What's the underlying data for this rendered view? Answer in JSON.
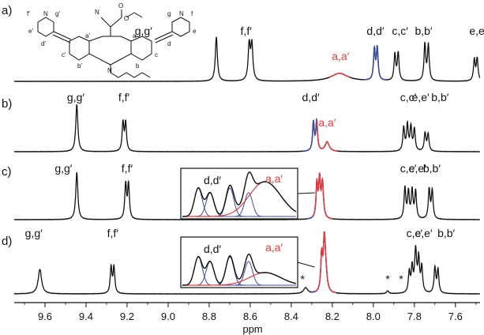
{
  "chart_data": {
    "type": "line",
    "xlabel": "ppm",
    "xlim": [
      9.75,
      7.48
    ],
    "ticks": [
      "9.6",
      "9.4",
      "9.2",
      "9.0",
      "8.8",
      "8.6",
      "8.4",
      "8.2",
      "8.0",
      "7.8",
      "7.6"
    ],
    "tick_values": [
      9.6,
      9.4,
      9.2,
      9.0,
      8.8,
      8.6,
      8.4,
      8.2,
      8.0,
      7.8,
      7.6
    ],
    "colors": {
      "trace": "#111111",
      "aa": "#e53b3b",
      "dd": "#3a4ca0"
    },
    "structure_labels": {
      "f_prime": "f′",
      "g_prime": "g′",
      "e_prime": "e′",
      "d_prime": "d′",
      "a_prime": "a′",
      "c_prime": "c′",
      "b_prime": "b′",
      "a": "a",
      "b": "b",
      "c": "c",
      "d": "d",
      "e": "e",
      "f": "f",
      "g": "g",
      "n_left": "N",
      "n_right": "N",
      "n_center": "N",
      "cn_n": "N",
      "o_top": "O",
      "o_mid": "O"
    },
    "panels": [
      {
        "tag": "a)",
        "labels": [
          {
            "text": "g,g′",
            "x": 9.12
          },
          {
            "text": "f,f′",
            "x": 8.62
          },
          {
            "text": "a,a′",
            "x": 8.16,
            "color": "aa"
          },
          {
            "text": "d,d′",
            "x": 7.99
          },
          {
            "text": "c,c′",
            "x": 7.87
          },
          {
            "text": "b,b′",
            "x": 7.755
          },
          {
            "text": "e,e′",
            "x": 7.49
          }
        ],
        "peaks": [
          {
            "x": 8.765,
            "h": 1.0,
            "w": 0.006,
            "c": "trace"
          },
          {
            "x": 8.605,
            "h": 0.8,
            "w": 0.006,
            "c": "trace"
          },
          {
            "x": 8.592,
            "h": 0.8,
            "w": 0.006,
            "c": "trace"
          },
          {
            "x": 8.165,
            "h": 0.18,
            "w": 0.05,
            "c": "aa"
          },
          {
            "x": 7.995,
            "h": 0.68,
            "w": 0.005,
            "c": "dd"
          },
          {
            "x": 7.981,
            "h": 0.72,
            "w": 0.005,
            "c": "dd"
          },
          {
            "x": 7.895,
            "h": 0.6,
            "w": 0.005,
            "c": "trace"
          },
          {
            "x": 7.879,
            "h": 0.62,
            "w": 0.005,
            "c": "trace"
          },
          {
            "x": 7.749,
            "h": 0.82,
            "w": 0.005,
            "c": "trace"
          },
          {
            "x": 7.732,
            "h": 0.8,
            "w": 0.005,
            "c": "trace"
          },
          {
            "x": 7.508,
            "h": 0.48,
            "w": 0.005,
            "c": "trace"
          },
          {
            "x": 7.494,
            "h": 0.5,
            "w": 0.005,
            "c": "trace"
          }
        ]
      },
      {
        "tag": "b)",
        "labels": [
          {
            "text": "g,g′",
            "x": 9.45
          },
          {
            "text": "f,f′",
            "x": 9.215
          },
          {
            "text": "d,d′",
            "x": 8.305
          },
          {
            "text": "a,a′",
            "x": 8.225,
            "color": "aa"
          },
          {
            "text": "c,c′",
            "x": 7.83
          },
          {
            "text": "e,e′",
            "x": 7.77
          },
          {
            "text": "b,b′",
            "x": 7.675
          }
        ],
        "peaks": [
          {
            "x": 9.445,
            "h": 1.0,
            "w": 0.006,
            "c": "trace"
          },
          {
            "x": 9.22,
            "h": 0.6,
            "w": 0.005,
            "c": "trace"
          },
          {
            "x": 9.207,
            "h": 0.6,
            "w": 0.005,
            "c": "trace"
          },
          {
            "x": 8.292,
            "h": 0.6,
            "w": 0.005,
            "c": "dd"
          },
          {
            "x": 8.276,
            "h": 0.62,
            "w": 0.005,
            "c": "dd"
          },
          {
            "x": 8.225,
            "h": 0.2,
            "w": 0.012,
            "c": "aa"
          },
          {
            "x": 7.852,
            "h": 0.5,
            "w": 0.005,
            "c": "trace"
          },
          {
            "x": 7.834,
            "h": 0.55,
            "w": 0.005,
            "c": "trace"
          },
          {
            "x": 7.817,
            "h": 0.5,
            "w": 0.005,
            "c": "trace"
          },
          {
            "x": 7.8,
            "h": 0.46,
            "w": 0.005,
            "c": "trace"
          },
          {
            "x": 7.748,
            "h": 0.38,
            "w": 0.005,
            "c": "trace"
          },
          {
            "x": 7.733,
            "h": 0.36,
            "w": 0.005,
            "c": "trace"
          }
        ]
      },
      {
        "tag": "c)",
        "labels": [
          {
            "text": "g,g′",
            "x": 9.51
          },
          {
            "text": "f,f′",
            "x": 9.2
          },
          {
            "text": "c,c′",
            "x": 7.83
          },
          {
            "text": "e,e′",
            "x": 7.785
          },
          {
            "text": "b,b′",
            "x": 7.715
          }
        ],
        "inset": {
          "labels": [
            {
              "text": "d,d′",
              "x": 8.78
            },
            {
              "text": "a,a′",
              "x": 8.58,
              "color": "aa"
            }
          ]
        },
        "peaks": [
          {
            "x": 9.445,
            "h": 1.0,
            "w": 0.006,
            "c": "trace"
          },
          {
            "x": 9.207,
            "h": 0.74,
            "w": 0.005,
            "c": "trace"
          },
          {
            "x": 9.193,
            "h": 0.74,
            "w": 0.005,
            "c": "trace"
          },
          {
            "x": 8.275,
            "h": 0.72,
            "w": 0.005,
            "c": "dd"
          },
          {
            "x": 8.262,
            "h": 0.78,
            "w": 0.005,
            "c": "dd"
          },
          {
            "x": 8.248,
            "h": 0.74,
            "w": 0.006,
            "c": "aa"
          },
          {
            "x": 7.846,
            "h": 0.66,
            "w": 0.005,
            "c": "trace"
          },
          {
            "x": 7.829,
            "h": 0.56,
            "w": 0.005,
            "c": "trace"
          },
          {
            "x": 7.811,
            "h": 0.6,
            "w": 0.005,
            "c": "trace"
          },
          {
            "x": 7.794,
            "h": 0.58,
            "w": 0.005,
            "c": "trace"
          },
          {
            "x": 7.728,
            "h": 0.62,
            "w": 0.005,
            "c": "trace"
          },
          {
            "x": 7.713,
            "h": 0.6,
            "w": 0.005,
            "c": "trace"
          }
        ]
      },
      {
        "tag": "d)",
        "labels": [
          {
            "text": "g,g′",
            "x": 9.655
          },
          {
            "text": "f,f′",
            "x": 9.27
          },
          {
            "text": "c,c′",
            "x": 7.8
          },
          {
            "text": "e,e′",
            "x": 7.755
          },
          {
            "text": "b,b′",
            "x": 7.645
          }
        ],
        "inset": {
          "labels": [
            {
              "text": "d,d′",
              "x": 8.78
            },
            {
              "text": "a,a′",
              "x": 8.58,
              "color": "aa"
            }
          ]
        },
        "stars": [
          8.345,
          7.93,
          7.865
        ],
        "peaks": [
          {
            "x": 9.625,
            "h": 0.5,
            "w": 0.01,
            "c": "trace"
          },
          {
            "x": 9.278,
            "h": 0.54,
            "w": 0.005,
            "c": "trace"
          },
          {
            "x": 9.264,
            "h": 0.54,
            "w": 0.005,
            "c": "trace"
          },
          {
            "x": 8.33,
            "h": 0.12,
            "w": 0.012,
            "c": "trace"
          },
          {
            "x": 8.252,
            "h": 0.7,
            "w": 0.005,
            "c": "dd"
          },
          {
            "x": 8.239,
            "h": 0.98,
            "w": 0.006,
            "c": "dd"
          },
          {
            "x": 8.232,
            "h": 0.35,
            "w": 0.008,
            "c": "aa"
          },
          {
            "x": 7.93,
            "h": 0.06,
            "w": 0.006,
            "c": "trace"
          },
          {
            "x": 7.825,
            "h": 0.42,
            "w": 0.005,
            "c": "trace"
          },
          {
            "x": 7.811,
            "h": 0.5,
            "w": 0.005,
            "c": "trace"
          },
          {
            "x": 7.794,
            "h": 0.86,
            "w": 0.006,
            "c": "trace"
          },
          {
            "x": 7.779,
            "h": 0.66,
            "w": 0.005,
            "c": "trace"
          },
          {
            "x": 7.764,
            "h": 0.52,
            "w": 0.005,
            "c": "trace"
          },
          {
            "x": 7.7,
            "h": 0.52,
            "w": 0.005,
            "c": "trace"
          },
          {
            "x": 7.685,
            "h": 0.48,
            "w": 0.005,
            "c": "trace"
          }
        ]
      }
    ]
  }
}
